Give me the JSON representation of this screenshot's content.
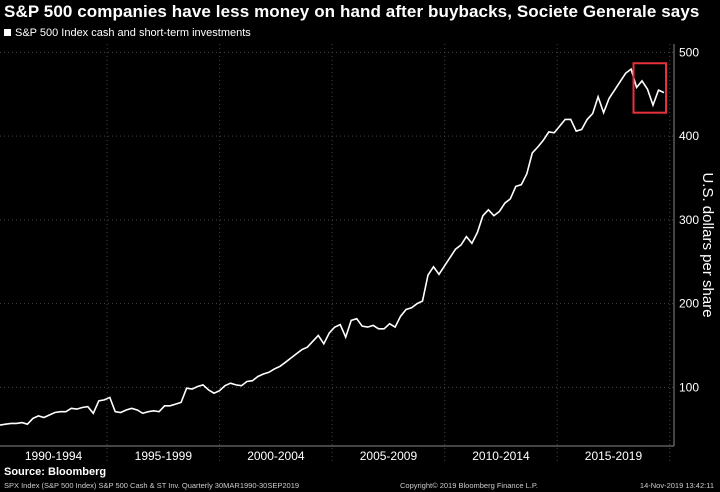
{
  "chart_data": {
    "type": "line",
    "title": "S&P 500 companies have less money on hand after buybacks, Societe Generale says",
    "series": [
      {
        "name": "S&P 500 Index cash and short-term investments",
        "values": [
          55,
          56,
          57,
          57,
          58,
          56,
          63,
          66,
          64,
          67,
          70,
          71,
          71,
          75,
          74,
          76,
          77,
          69,
          84,
          85,
          88,
          71,
          70,
          73,
          75,
          73,
          69,
          71,
          72,
          71,
          78,
          78,
          80,
          82,
          99,
          98,
          101,
          103,
          97,
          93,
          96,
          102,
          105,
          103,
          102,
          107,
          108,
          113,
          116,
          118,
          122,
          125,
          130,
          135,
          140,
          145,
          148,
          155,
          162,
          152,
          165,
          172,
          175,
          160,
          180,
          182,
          173,
          172,
          174,
          170,
          170,
          176,
          172,
          185,
          193,
          195,
          200,
          203,
          234,
          244,
          235,
          245,
          255,
          265,
          270,
          280,
          272,
          285,
          305,
          312,
          305,
          310,
          320,
          325,
          340,
          342,
          355,
          380,
          387,
          395,
          405,
          404,
          412,
          420,
          420,
          406,
          408,
          420,
          427,
          447,
          428,
          445,
          455,
          465,
          475,
          480,
          458,
          466,
          456,
          437,
          455,
          452
        ],
        "color": "#ffffff"
      }
    ],
    "x_start": "1990-03-30",
    "x_end": "2019-09-30",
    "x_tick_labels": [
      "1990-1994",
      "1995-1999",
      "2000-2004",
      "2005-2009",
      "2010-2014",
      "2015-2019"
    ],
    "y_ticks": [
      100,
      200,
      300,
      400,
      500
    ],
    "ylabel": "U.S. dollars per share",
    "ylim": [
      30,
      510
    ],
    "highlight_box": {
      "x_from": "2018-09-30",
      "x_to": "2019-09-30",
      "y_from": 428,
      "y_to": 487,
      "color": "#e8313a"
    },
    "grid": true,
    "legend_position": "top-left",
    "source": "Source: Bloomberg",
    "footer_left": "SPX Index (S&P 500 Index) S&P 500 Cash & ST Inv.  Quarterly 30MAR1990-30SEP2019",
    "footer_mid": "Copyright© 2019 Bloomberg Finance L.P.",
    "footer_right": "14-Nov-2019 13:42:11"
  }
}
